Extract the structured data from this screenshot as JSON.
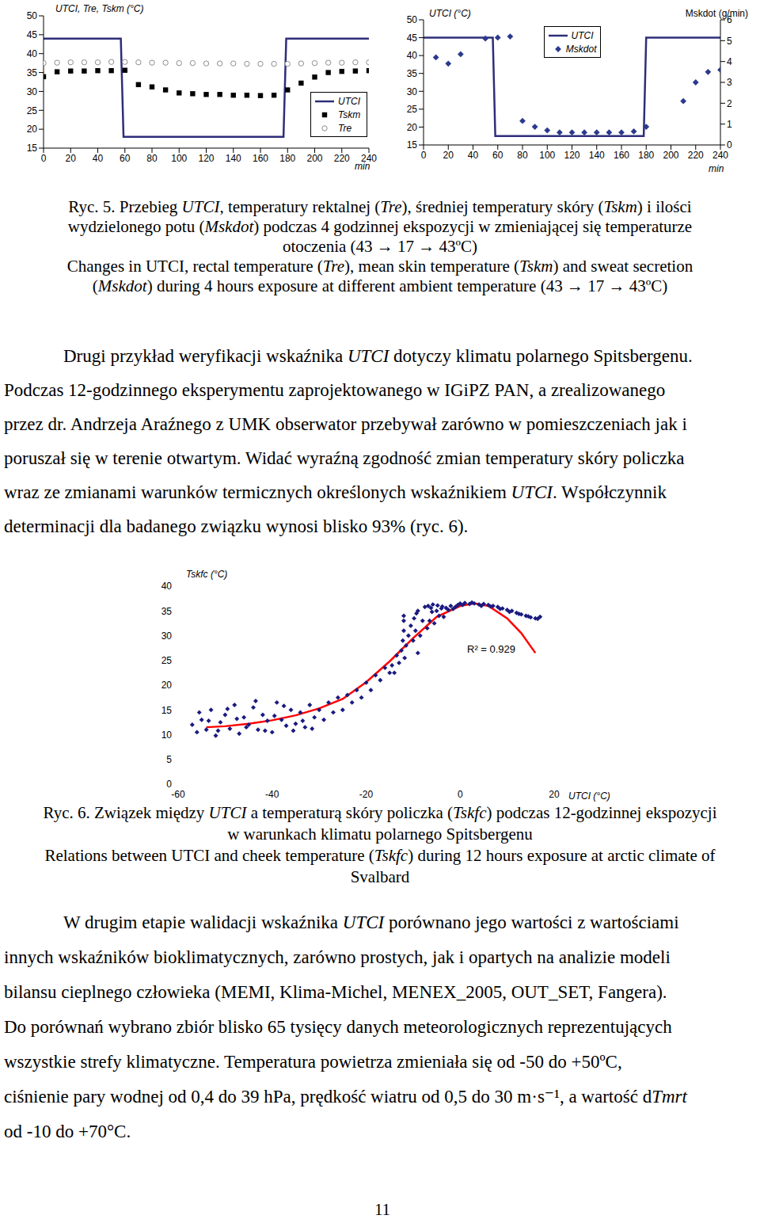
{
  "chart_data": [
    {
      "type": "line",
      "ylabel": "UTCI, Tre, Tskm (°C)",
      "xlabel": "min",
      "xlim": [
        0,
        240
      ],
      "xticks": [
        0,
        20,
        40,
        60,
        80,
        100,
        120,
        140,
        160,
        180,
        200,
        220,
        240
      ],
      "ylim": [
        15,
        50
      ],
      "yticks": [
        15,
        20,
        25,
        30,
        35,
        40,
        45,
        50
      ],
      "grid": false,
      "legend": "lower right",
      "series": [
        {
          "name": "UTCI",
          "type": "line",
          "line_style": "solid",
          "color": "#2e2e7a",
          "x": [
            0,
            57,
            59,
            177,
            179,
            240
          ],
          "values": [
            44,
            44,
            18,
            18,
            44,
            44
          ]
        },
        {
          "name": "Tskm",
          "type": "scatter",
          "marker": "square",
          "color": "#000000",
          "x": [
            0,
            10,
            20,
            30,
            40,
            50,
            60,
            70,
            80,
            90,
            100,
            110,
            120,
            130,
            140,
            150,
            160,
            170,
            180,
            190,
            200,
            210,
            220,
            230,
            240
          ],
          "values": [
            33.9,
            35.2,
            35.4,
            35.4,
            35.5,
            35.5,
            35.6,
            31.8,
            31.2,
            30.4,
            29.6,
            29.4,
            29.2,
            29.2,
            29.0,
            29.0,
            28.9,
            29.0,
            30.4,
            32.2,
            33.8,
            35.0,
            35.3,
            35.4,
            35.5
          ]
        },
        {
          "name": "Tre",
          "type": "scatter",
          "marker": "open_circle",
          "color": "#8c8c8c",
          "x": [
            0,
            10,
            20,
            30,
            40,
            50,
            60,
            70,
            80,
            90,
            100,
            110,
            120,
            130,
            140,
            150,
            160,
            170,
            180,
            190,
            200,
            210,
            220,
            230,
            240
          ],
          "values": [
            37.5,
            37.6,
            37.7,
            37.7,
            37.7,
            37.8,
            37.8,
            37.7,
            37.6,
            37.6,
            37.5,
            37.5,
            37.4,
            37.4,
            37.4,
            37.3,
            37.3,
            37.3,
            37.3,
            37.4,
            37.5,
            37.6,
            37.6,
            37.7,
            37.7
          ]
        }
      ]
    },
    {
      "type": "line",
      "ylabel": "UTCI (°C)",
      "y2label": "Mskdot (g/min)",
      "xlabel": "min",
      "xlim": [
        0,
        240
      ],
      "xticks": [
        0,
        20,
        40,
        60,
        80,
        100,
        120,
        140,
        160,
        180,
        200,
        220,
        240
      ],
      "ylim": [
        15,
        50
      ],
      "yticks": [
        15,
        20,
        25,
        30,
        35,
        40,
        45,
        50
      ],
      "y2lim": [
        0,
        6
      ],
      "y2ticks": [
        0,
        1,
        2,
        3,
        4,
        5,
        6
      ],
      "grid": false,
      "legend": "upper center",
      "series": [
        {
          "name": "UTCI",
          "type": "line",
          "line_style": "solid",
          "color": "#2e2e7a",
          "x": [
            0,
            56,
            58,
            178,
            180,
            240
          ],
          "values": [
            45,
            45,
            17.5,
            17.5,
            45,
            45
          ]
        },
        {
          "name": "Mskdot",
          "type": "scatter",
          "marker": "diamond",
          "axis": "y2",
          "color": "#2b3a8c",
          "x": [
            10,
            20,
            30,
            50,
            60,
            70,
            80,
            90,
            100,
            110,
            120,
            130,
            140,
            150,
            160,
            170,
            180,
            210,
            220,
            230,
            240
          ],
          "values": [
            4.2,
            3.9,
            4.35,
            5.1,
            5.15,
            5.2,
            1.15,
            0.87,
            0.7,
            0.6,
            0.6,
            0.6,
            0.6,
            0.6,
            0.6,
            0.65,
            0.87,
            2.1,
            3.0,
            3.5,
            3.6
          ]
        }
      ]
    },
    {
      "type": "scatter",
      "ylabel": "Tskfc (°C)",
      "xlabel": "UTCI (°C)",
      "annotation": "R² = 0.929",
      "xlim": [
        -60,
        20
      ],
      "xticks": [
        -60,
        -40,
        -20,
        0,
        20
      ],
      "ylim": [
        0,
        40
      ],
      "yticks": [
        0,
        5,
        10,
        15,
        20,
        25,
        30,
        35,
        40
      ],
      "grid": false,
      "series": [
        {
          "type": "scatter",
          "marker": "diamond",
          "color": "#1a1a80",
          "x": [
            -57,
            -56,
            -55,
            -54,
            -53,
            -52,
            -51,
            -50,
            -49,
            -48,
            -47,
            -46,
            -45,
            -44,
            -43,
            -42,
            -41,
            -40,
            -39,
            -38,
            -37,
            -36,
            -35,
            -34,
            -33,
            -32,
            -31,
            -30,
            -55.5,
            -53.5,
            -51.5,
            -49.5,
            -47.5,
            -45.5,
            -43.5,
            -41.5,
            -39.5,
            -37.5,
            -35.5,
            -33.5,
            -31.5,
            -29,
            -28,
            -27,
            -26,
            -25,
            -24,
            -23,
            -22,
            -21,
            -20,
            -19,
            -18,
            -17,
            -16,
            -15,
            -14.5,
            -14,
            -13.5,
            -13,
            -12.5,
            -12.2,
            -12,
            -12,
            -12,
            -11.8,
            -11.5,
            -11,
            -10.5,
            -10,
            -9.8,
            -9.5,
            -9.3,
            -9,
            -9,
            -8.5,
            -8,
            -7,
            -6.5,
            -6,
            -5.5,
            -5,
            -4.5,
            -4,
            -3.5,
            -3,
            -2.5,
            -2,
            -1.5,
            -1,
            -0.5,
            -7.5,
            -6.8,
            -6.2,
            -5.8,
            -4.8,
            -3.8,
            0,
            1,
            2,
            3,
            4,
            5,
            6,
            7,
            8,
            9,
            10,
            11,
            12,
            13,
            14,
            15,
            16,
            17,
            0.5,
            2.5,
            4.5,
            6.5,
            8.5,
            10.5,
            12.5,
            14.5,
            16.5
          ],
          "values": [
            12,
            10.5,
            13,
            11,
            15,
            9.8,
            12.5,
            14,
            11.2,
            16,
            10.2,
            13.5,
            12,
            15.5,
            11,
            14,
            12.8,
            10.5,
            16.5,
            13,
            11.8,
            15,
            12.2,
            14.5,
            11.5,
            16,
            13.5,
            15,
            14.5,
            12.8,
            10.8,
            15.2,
            13.2,
            11.5,
            16.8,
            10.8,
            13.8,
            15.8,
            10.8,
            12.8,
            11.2,
            13,
            16.5,
            14.5,
            17.5,
            15,
            18,
            16.5,
            19,
            17.5,
            20.5,
            19,
            22,
            21,
            23.5,
            22.5,
            24,
            22.5,
            26,
            24.5,
            27,
            29,
            31,
            33,
            34,
            25.5,
            28,
            30,
            32,
            29,
            33.5,
            31,
            34.5,
            26.5,
            35,
            30,
            33,
            31.5,
            33,
            34.8,
            32.5,
            35,
            34,
            35.5,
            33.8,
            35.6,
            35.2,
            36,
            35.4,
            35.8,
            36.2,
            35.8,
            36,
            35.6,
            36.3,
            36.1,
            35.9,
            36.5,
            36.6,
            36.4,
            36.5,
            36.3,
            36.4,
            36.2,
            36,
            35.8,
            35.5,
            35.2,
            35,
            34.6,
            34.3,
            34,
            33.7,
            33.5,
            33.8,
            36.2,
            36.7,
            36,
            35.9,
            35.4,
            34.8,
            34.4,
            33.9,
            33.4
          ]
        },
        {
          "type": "line",
          "line_style": "solid",
          "color": "#ff0000",
          "x": [
            -54,
            -50,
            -45,
            -40,
            -35,
            -30,
            -25,
            -20,
            -15,
            -10,
            -5,
            0,
            3,
            6,
            10,
            13,
            16
          ],
          "values": [
            11.5,
            11.7,
            12.2,
            12.9,
            13.9,
            15.3,
            17.2,
            20.6,
            24.8,
            29.5,
            33.8,
            36,
            36.5,
            36,
            33.5,
            30.5,
            26.5
          ]
        }
      ]
    }
  ],
  "captions": [
    [
      [
        "Ryc. 5. Przebieg ",
        "UTCI",
        ", temperatury rektalnej (",
        "Tre",
        "), średniej temperatury skóry (",
        "Tskm",
        ") i ilości"
      ],
      [
        "wydzielonego potu (",
        "Mskdot",
        ") podczas 4 godzinnej ekspozycji w zmieniającej się temperaturze"
      ],
      [
        "otoczenia (43 → 17 → 43ºC)"
      ],
      [
        "Changes in UTCI, rectal temperature (",
        "Tre",
        "), mean skin temperature (",
        "Tskm",
        ") and sweat secretion"
      ],
      [
        "(",
        "Mskdot",
        ") during 4 hours exposure at different ambient temperature (43 → 17 → 43ºC)"
      ]
    ],
    [
      [
        "Ryc. 6. Związek między ",
        "UTCI",
        " a temperaturą skóry policzka (",
        "Tskfc",
        ") podczas 12-godzinnej ekspozycji"
      ],
      [
        "w warunkach klimatu polarnego Spitsbergenu"
      ],
      [
        "Relations between UTCI and cheek temperature (",
        "Tskfc",
        ")  during 12 hours exposure at arctic climate of"
      ],
      [
        "Svalbard"
      ]
    ]
  ],
  "paragraphs": [
    [
      [
        "Drugi przykład weryfikacji wskaźnika ",
        "UTCI",
        " dotyczy klimatu polarnego Spitsbergenu."
      ],
      [
        "Podczas 12-godzinnego eksperymentu zaprojektowanego w IGiPZ PAN, a zrealizowanego"
      ],
      [
        "przez dr. Andrzeja Araźnego z UMK obserwator przebywał zarówno w pomieszczeniach jak i"
      ],
      [
        "poruszał się w terenie otwartym. Widać wyraźną zgodność zmian temperatury skóry policzka"
      ],
      [
        "wraz ze zmianami warunków termicznych określonych wskaźnikiem ",
        "UTCI",
        ". Współczynnik"
      ],
      [
        "determinacji dla badanego związku wynosi blisko 93% (ryc. 6)."
      ]
    ],
    [
      [
        "W drugim etapie walidacji wskaźnika ",
        "UTCI",
        " porównano jego wartości z wartościami"
      ],
      [
        "innych wskaźników bioklimatycznych, zarówno prostych, jak i opartych na analizie modeli"
      ],
      [
        "bilansu cieplnego człowieka (MEMI, Klima-Michel, MENEX_2005, OUT_SET, Fangera)."
      ],
      [
        "Do porównań wybrano zbiór blisko 65 tysięcy danych meteorologicznych reprezentujących"
      ],
      [
        "wszystkie strefy klimatyczne. Temperatura powietrza zmieniała się od -50 do +50ºC,"
      ],
      [
        "ciśnienie pary wodnej od 0,4 do 39 hPa, prędkość wiatru od 0,5 do 30 m·s⁻¹, a wartość d",
        "Tmrt"
      ],
      [
        "od -10 do +70°C."
      ]
    ]
  ],
  "page_number": "11"
}
